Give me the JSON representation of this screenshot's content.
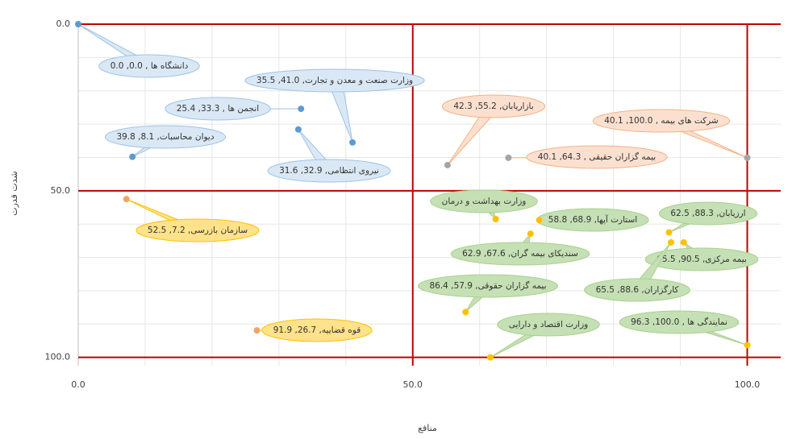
{
  "chart_data": {
    "type": "scatter",
    "x_label": "منافع",
    "y_label": "شدت قدرت",
    "xlim": [
      0,
      105
    ],
    "ylim": [
      0,
      102.5
    ],
    "y_inverted": true,
    "xticks": [
      {
        "value": 0,
        "label": "0.0"
      },
      {
        "value": 50,
        "label": "50.0"
      },
      {
        "value": 100,
        "label": "100.0"
      }
    ],
    "yticks": [
      {
        "value": 0,
        "label": "0.0"
      },
      {
        "value": 50,
        "label": "50.0"
      },
      {
        "value": 100,
        "label": "100.0"
      }
    ],
    "major_grid_color": "#c00000",
    "minor_xticks": [
      10,
      20,
      30,
      40,
      60,
      70,
      80,
      90
    ],
    "minor_yticks": [
      10,
      20,
      30,
      40,
      60,
      70,
      80,
      90
    ],
    "series": [
      {
        "color": "#5b9bd5",
        "label_fill": "#dae8f5",
        "label_stroke": "#9dc3e6",
        "x": [
          0,
          33.3,
          8.1,
          32.9,
          41.0
        ],
        "values": [
          0,
          25.4,
          39.8,
          31.6,
          35.5
        ],
        "value_labels": [
          "دانشگاه ها , 0.0, 0.0",
          "انجمن ها , 33.3, 25.4",
          "دیوان محاسبات, 8.1, 39.8",
          "نیروی انتظامی, 32.9, 31.6",
          "وزارت صنعت و معدن و تجارت, 41.0, 35.5"
        ]
      },
      {
        "color": "#a5a5a5",
        "label_fill": "#fbe0d0",
        "label_stroke": "#f4b183",
        "x": [
          55.2,
          100.0,
          64.3
        ],
        "values": [
          42.3,
          40.1,
          40.1
        ],
        "value_labels": [
          "بازاریابان, 55.2, 42.3",
          "شرکت های بیمه , 100.0, 40.1",
          "بیمه گزاران حقیقی , 64.3, 40.1"
        ]
      },
      {
        "color": "#f4a460",
        "label_fill": "#ffe28a",
        "label_stroke": "#ffc000",
        "x": [
          7.2,
          26.7
        ],
        "values": [
          52.5,
          91.9
        ],
        "value_labels": [
          "سازمان بازرسی, 7.2, 52.5",
          "قوه قضاییه, 26.7, 91.9"
        ]
      },
      {
        "color": "#ffc000",
        "label_fill": "#c5e0b4",
        "label_stroke": "#a9d18e",
        "x": [
          62.4,
          88.3,
          68.9,
          67.6,
          90.5,
          88.6,
          57.9,
          100.0,
          61.6
        ],
        "values": [
          58.5,
          62.5,
          58.8,
          62.9,
          65.5,
          65.5,
          86.4,
          96.3,
          100
        ],
        "value_labels": [
          "وزارت بهداشت و درمان",
          "ارزیابان, 88.3, 62.5",
          "استارت آپها, 68.9, 58.8",
          "سندیکای بیمه گران, 67.6, 62.9",
          "بیمه مرکزی, 90.5, 65.5",
          "کارگزاران, 88.6, 65.5",
          "بیمه گزاران حقوقی, 57.9, 86.4",
          "نمایندگی ها , 100.0, 96.3",
          "وزارت اقتصاد و دارایی"
        ]
      }
    ]
  }
}
